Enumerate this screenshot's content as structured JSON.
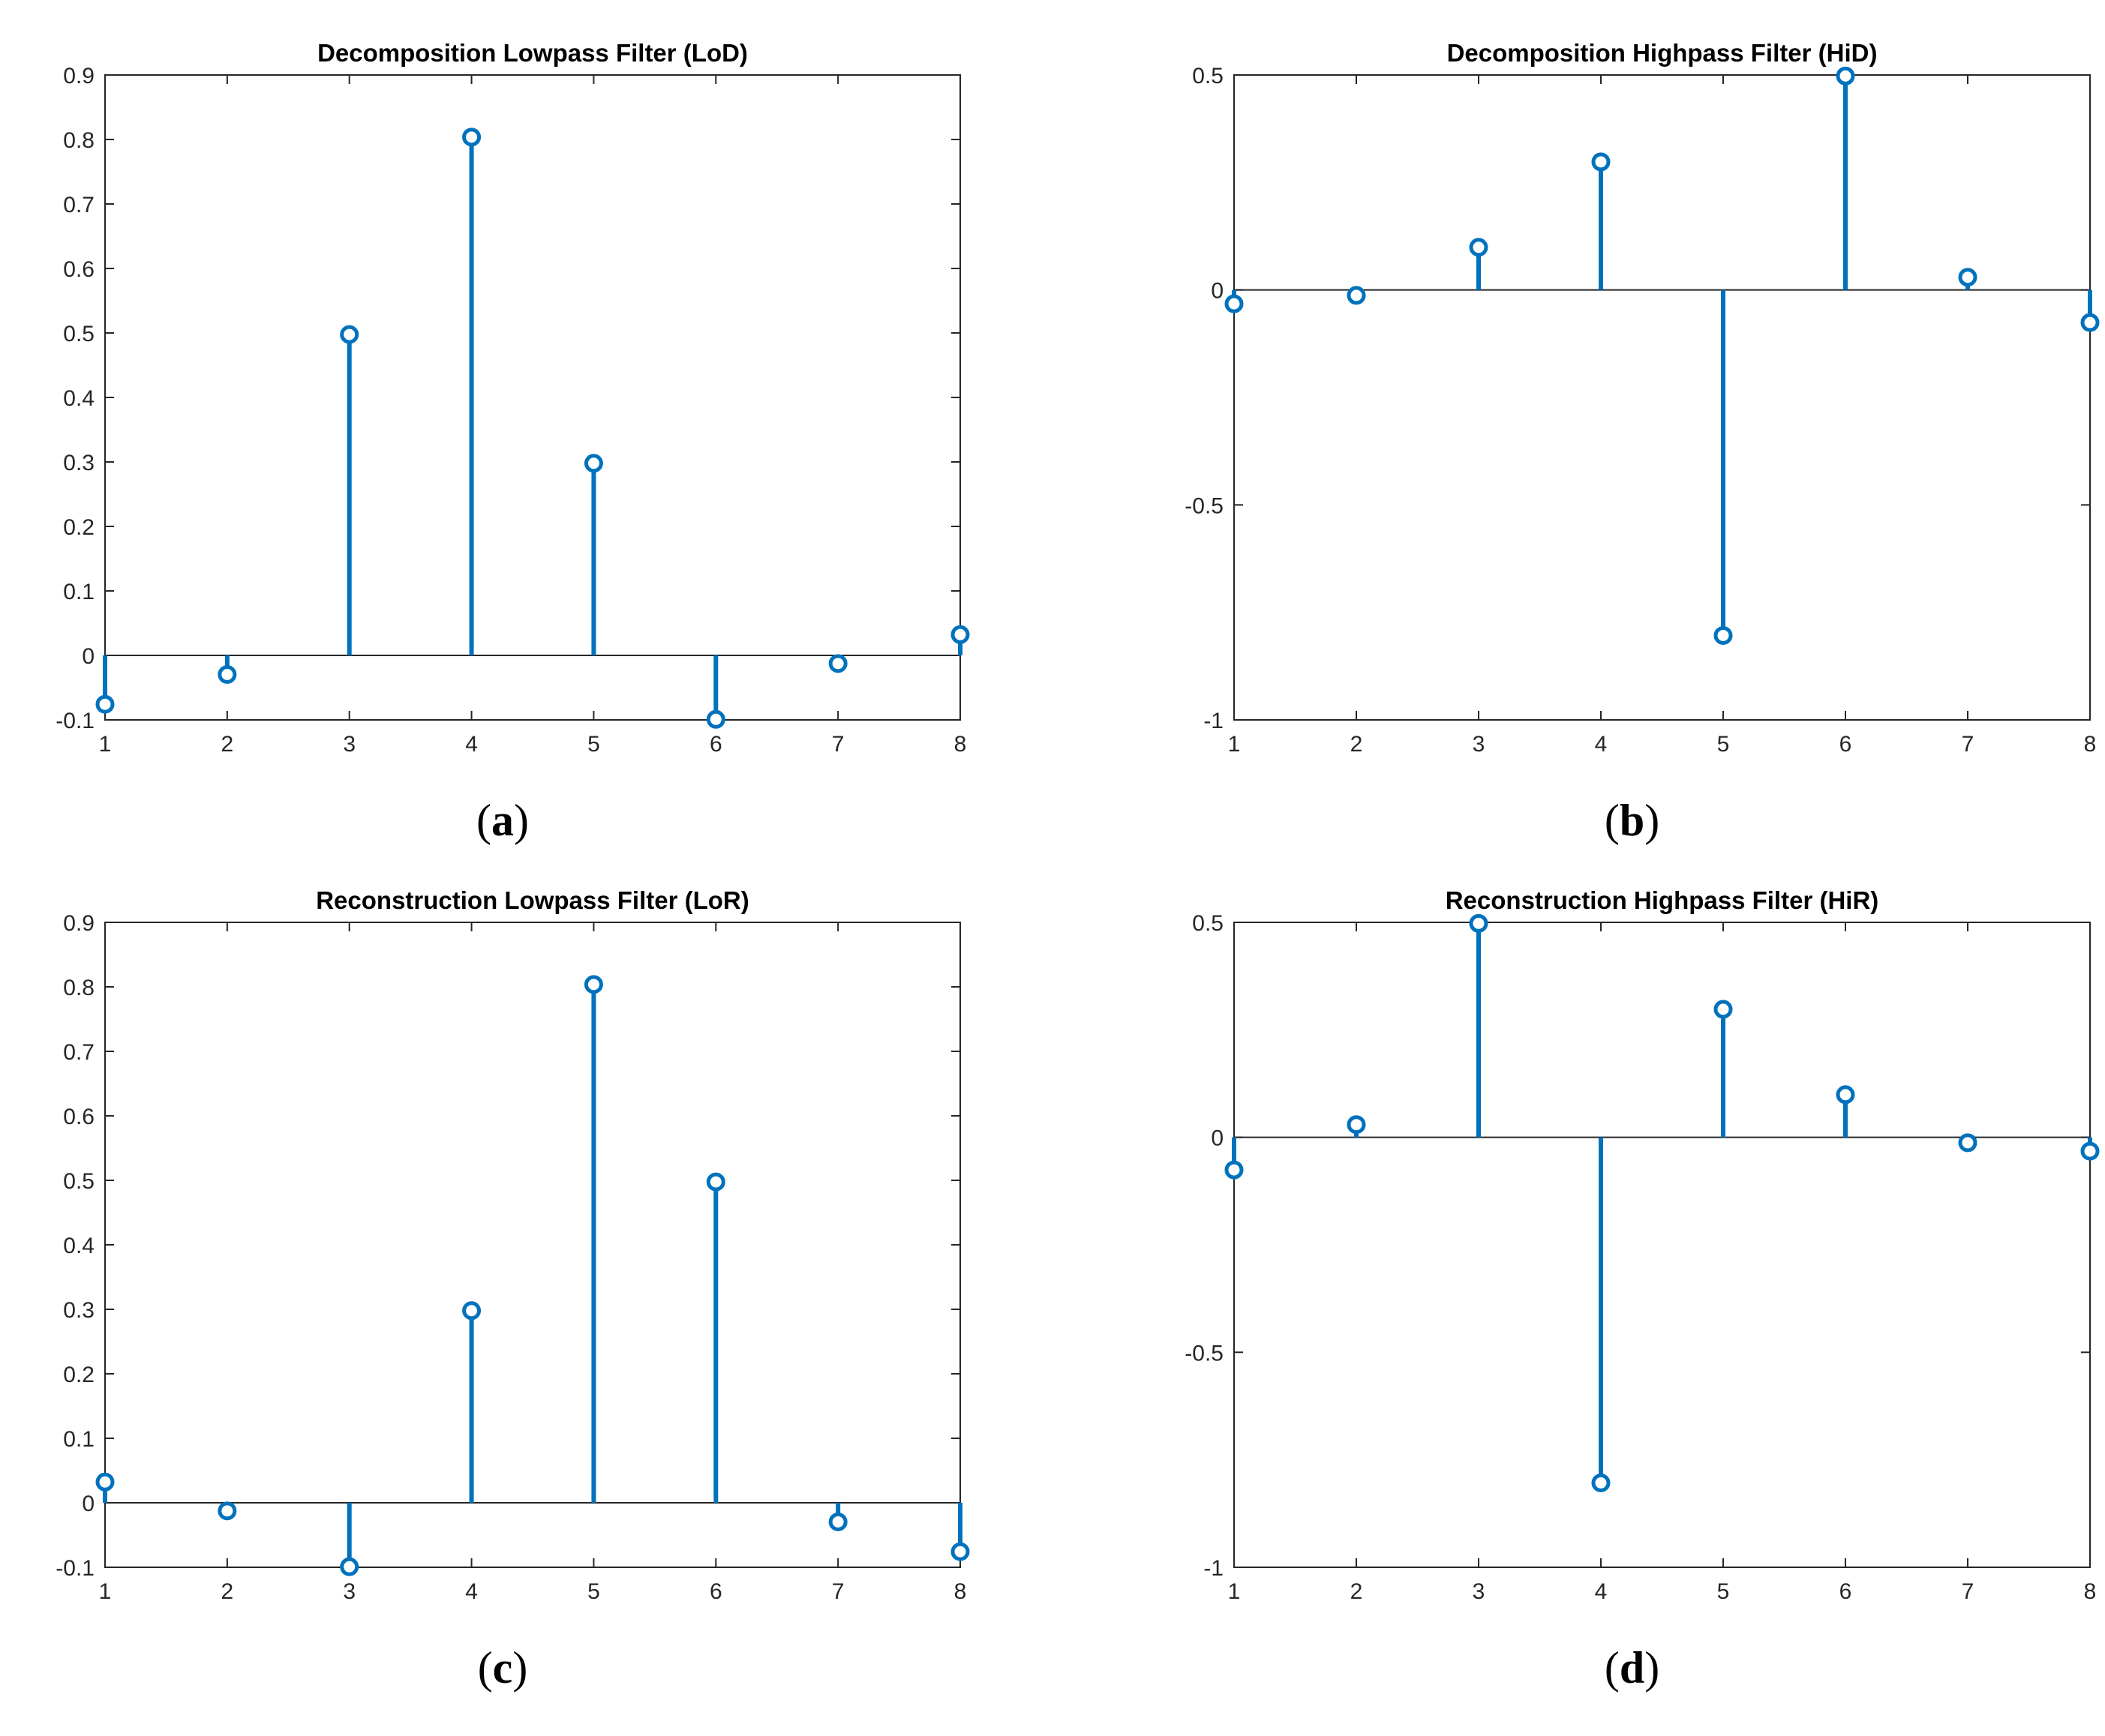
{
  "colors": {
    "stem": "#0072BD",
    "axis": "#262626",
    "text": "#262626"
  },
  "chart_data": [
    {
      "id": "a",
      "type": "stem",
      "title": "Decomposition Lowpass Filter (LoD)",
      "caption_letter": "a",
      "x": [
        1,
        2,
        3,
        4,
        5,
        6,
        7,
        8
      ],
      "values": [
        -0.0758,
        -0.0296,
        0.4976,
        0.8037,
        0.2979,
        -0.0992,
        -0.0126,
        0.0322
      ],
      "xlim": [
        1,
        8
      ],
      "ylim": [
        -0.1,
        0.9
      ],
      "xticks": [
        1,
        2,
        3,
        4,
        5,
        6,
        7,
        8
      ],
      "yticks": [
        -0.1,
        0,
        0.1,
        0.2,
        0.3,
        0.4,
        0.5,
        0.6,
        0.7,
        0.8,
        0.9
      ],
      "ytick_labels": [
        "-0.1",
        "0",
        "0.1",
        "0.2",
        "0.3",
        "0.4",
        "0.5",
        "0.6",
        "0.7",
        "0.8",
        "0.9"
      ]
    },
    {
      "id": "b",
      "type": "stem",
      "title": "Decomposition Highpass Filter (HiD)",
      "caption_letter": "b",
      "x": [
        1,
        2,
        3,
        4,
        5,
        6,
        7,
        8
      ],
      "values": [
        -0.0322,
        -0.0126,
        0.0992,
        0.2979,
        -0.8037,
        0.4976,
        0.0296,
        -0.0758
      ],
      "xlim": [
        1,
        8
      ],
      "ylim": [
        -1,
        0.5
      ],
      "xticks": [
        1,
        2,
        3,
        4,
        5,
        6,
        7,
        8
      ],
      "yticks": [
        -1,
        -0.5,
        0,
        0.5
      ],
      "ytick_labels": [
        "-1",
        "-0.5",
        "0",
        "0.5"
      ]
    },
    {
      "id": "c",
      "type": "stem",
      "title": "Reconstruction Lowpass Filter (LoR)",
      "caption_letter": "c",
      "x": [
        1,
        2,
        3,
        4,
        5,
        6,
        7,
        8
      ],
      "values": [
        0.0322,
        -0.0126,
        -0.0992,
        0.2979,
        0.8037,
        0.4976,
        -0.0296,
        -0.0758
      ],
      "xlim": [
        1,
        8
      ],
      "ylim": [
        -0.1,
        0.9
      ],
      "xticks": [
        1,
        2,
        3,
        4,
        5,
        6,
        7,
        8
      ],
      "yticks": [
        -0.1,
        0,
        0.1,
        0.2,
        0.3,
        0.4,
        0.5,
        0.6,
        0.7,
        0.8,
        0.9
      ],
      "ytick_labels": [
        "-0.1",
        "0",
        "0.1",
        "0.2",
        "0.3",
        "0.4",
        "0.5",
        "0.6",
        "0.7",
        "0.8",
        "0.9"
      ]
    },
    {
      "id": "d",
      "type": "stem",
      "title": "Reconstruction Highpass Filter (HiR)",
      "caption_letter": "d",
      "x": [
        1,
        2,
        3,
        4,
        5,
        6,
        7,
        8
      ],
      "values": [
        -0.0758,
        0.0296,
        0.4976,
        -0.8037,
        0.2979,
        0.0992,
        -0.0126,
        -0.0322
      ],
      "xlim": [
        1,
        8
      ],
      "ylim": [
        -1,
        0.5
      ],
      "xticks": [
        1,
        2,
        3,
        4,
        5,
        6,
        7,
        8
      ],
      "yticks": [
        -1,
        -0.5,
        0,
        0.5
      ],
      "ytick_labels": [
        "-1",
        "-0.5",
        "0",
        "0.5"
      ]
    }
  ]
}
